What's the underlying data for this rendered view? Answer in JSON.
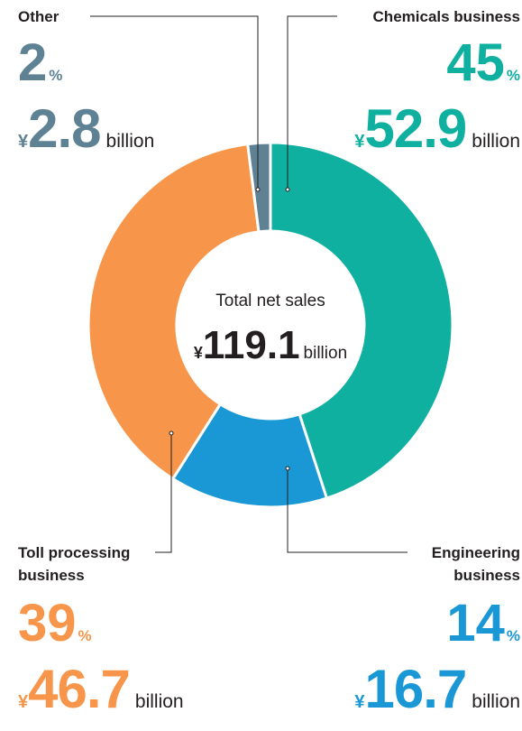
{
  "chart_data": {
    "type": "pie",
    "center": {
      "title": "Total net sales",
      "currency": "¥",
      "value": "119.1",
      "unit": "billion"
    },
    "slices": [
      {
        "name": "Chemicals business",
        "name_lines": [
          "Chemicals business"
        ],
        "percent": 45,
        "percent_unit": "%",
        "currency": "¥",
        "amount": "52.9",
        "amount_unit": "billion",
        "color": "#0fb0a0"
      },
      {
        "name": "Engineering business",
        "name_lines": [
          "Engineering",
          "business"
        ],
        "percent": 14,
        "percent_unit": "%",
        "currency": "¥",
        "amount": "16.7",
        "amount_unit": "billion",
        "color": "#1a98d6"
      },
      {
        "name": "Toll processing business",
        "name_lines": [
          "Toll processing",
          "business"
        ],
        "percent": 39,
        "percent_unit": "%",
        "currency": "¥",
        "amount": "46.7",
        "amount_unit": "billion",
        "color": "#f7964a"
      },
      {
        "name": "Other",
        "name_lines": [
          "Other"
        ],
        "percent": 2,
        "percent_unit": "%",
        "currency": "¥",
        "amount": "2.8",
        "amount_unit": "billion",
        "color": "#5e8294"
      }
    ]
  }
}
